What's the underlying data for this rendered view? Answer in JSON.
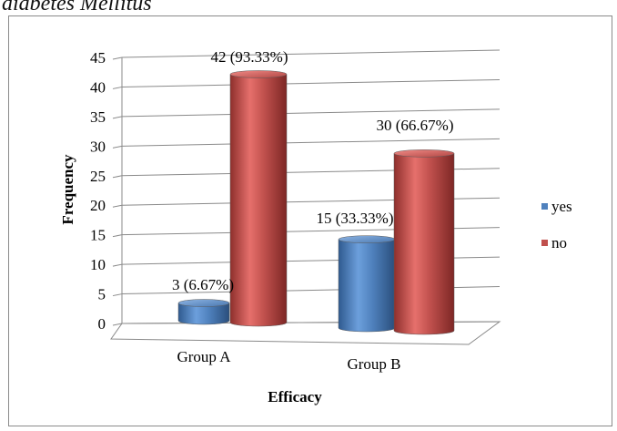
{
  "caption": "diabetes Mellitus",
  "chart_data": {
    "type": "bar",
    "style": "3d-cylinder",
    "categories": [
      "Group A",
      "Group B"
    ],
    "series": [
      {
        "name": "yes",
        "values": [
          3,
          15
        ],
        "labels": [
          "3 (6.67%)",
          "15 (33.33%)"
        ],
        "color": "#4f81bd"
      },
      {
        "name": "no",
        "values": [
          42,
          30
        ],
        "labels": [
          "42 (93.33%)",
          "30 (66.67%)"
        ],
        "color": "#c0504d"
      }
    ],
    "xlabel": "Efficacy",
    "ylabel": "Frequency",
    "ylim": [
      0,
      45
    ],
    "yticks": [
      "0",
      "5",
      "10",
      "15",
      "20",
      "25",
      "30",
      "35",
      "40",
      "45"
    ],
    "grid": true,
    "legend_position": "right"
  }
}
